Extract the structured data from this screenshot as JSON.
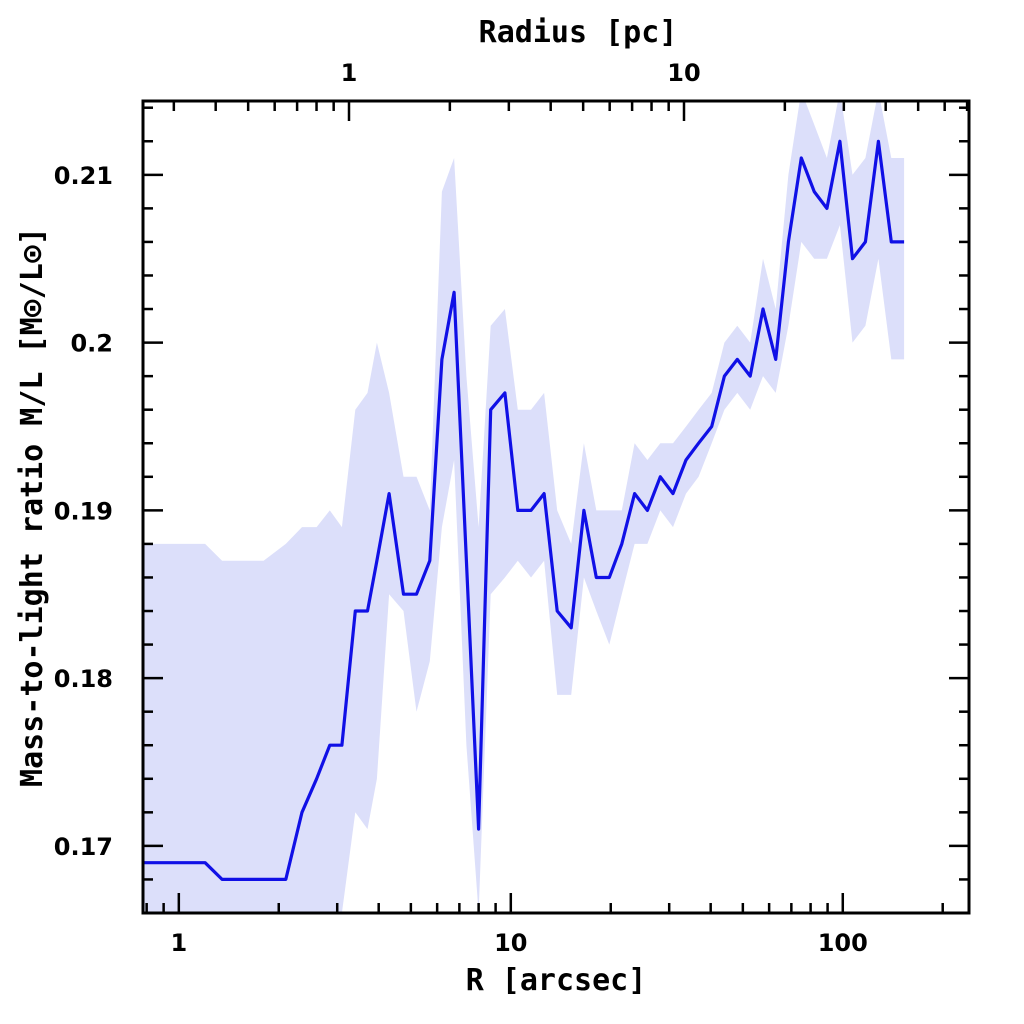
{
  "chart_data": {
    "type": "line",
    "title": "",
    "xlabel": "R [arcsec]",
    "ylabel": "Mass-to-light ratio M/L [M⊙/L⊙]",
    "top_xlabel": "Radius [pc]",
    "x_scale": "log",
    "xlim": [
      0.78,
      240
    ],
    "ylim": [
      0.166,
      0.2144
    ],
    "grid": false,
    "x_ticks": [
      {
        "value": 1,
        "label": "1"
      },
      {
        "value": 10,
        "label": "10"
      },
      {
        "value": 100,
        "label": "100"
      }
    ],
    "y_ticks": [
      {
        "value": 0.17,
        "label": "0.17"
      },
      {
        "value": 0.18,
        "label": "0.18"
      },
      {
        "value": 0.19,
        "label": "0.19"
      },
      {
        "value": 0.2,
        "label": "0.2"
      },
      {
        "value": 0.21,
        "label": "0.21"
      }
    ],
    "top_ticks": [
      {
        "value": 1,
        "label": "1"
      },
      {
        "value": 10,
        "label": "10"
      }
    ],
    "colors": {
      "line": "#1010e6",
      "band": "#dcdffa",
      "axes": "#000000"
    },
    "series": [
      {
        "x": [
          0.78,
          1.0,
          1.2,
          1.35,
          1.55,
          1.8,
          2.1,
          2.35,
          2.6,
          2.85,
          3.1,
          3.4,
          3.7,
          3.95,
          4.3,
          4.75,
          5.2,
          5.7,
          6.2,
          6.75,
          7.35,
          8.0,
          8.7,
          9.6,
          10.5,
          11.5,
          12.6,
          13.8,
          15.2,
          16.6,
          18.1,
          19.8,
          21.6,
          23.6,
          25.8,
          28.2,
          30.8,
          33.7,
          36.8,
          40.3,
          44.0,
          48.1,
          52.6,
          57.5,
          62.8,
          68.6,
          75.0,
          82.0,
          89.6,
          98.0,
          107.0,
          117.0,
          128.0,
          140.0,
          153.0
        ],
        "y": [
          0.169,
          0.169,
          0.169,
          0.168,
          0.168,
          0.168,
          0.168,
          0.172,
          0.174,
          0.176,
          0.176,
          0.184,
          0.184,
          0.187,
          0.191,
          0.185,
          0.185,
          0.187,
          0.199,
          0.203,
          0.187,
          0.171,
          0.196,
          0.197,
          0.19,
          0.19,
          0.191,
          0.184,
          0.183,
          0.19,
          0.186,
          0.186,
          0.188,
          0.191,
          0.19,
          0.192,
          0.191,
          0.193,
          0.194,
          0.195,
          0.198,
          0.199,
          0.198,
          0.202,
          0.199,
          0.206,
          0.211,
          0.209,
          0.208,
          0.212,
          0.205,
          0.206,
          0.212,
          0.206,
          0.206
        ],
        "y_upper": [
          0.188,
          0.188,
          0.188,
          0.187,
          0.187,
          0.187,
          0.188,
          0.189,
          0.189,
          0.19,
          0.189,
          0.196,
          0.197,
          0.2,
          0.197,
          0.192,
          0.192,
          0.19,
          0.209,
          0.211,
          0.198,
          0.189,
          0.201,
          0.202,
          0.196,
          0.196,
          0.197,
          0.19,
          0.188,
          0.194,
          0.19,
          0.19,
          0.19,
          0.194,
          0.193,
          0.194,
          0.194,
          0.195,
          0.196,
          0.197,
          0.2,
          0.201,
          0.2,
          0.205,
          0.202,
          0.21,
          0.215,
          0.213,
          0.211,
          0.215,
          0.21,
          0.211,
          0.215,
          0.211,
          0.211
        ],
        "y_lower": [
          0.166,
          0.166,
          0.166,
          0.166,
          0.166,
          0.166,
          0.166,
          0.166,
          0.166,
          0.166,
          0.166,
          0.172,
          0.171,
          0.174,
          0.185,
          0.184,
          0.178,
          0.181,
          0.189,
          0.193,
          0.176,
          0.166,
          0.185,
          0.186,
          0.187,
          0.186,
          0.187,
          0.179,
          0.179,
          0.186,
          0.184,
          0.182,
          0.185,
          0.188,
          0.188,
          0.19,
          0.189,
          0.191,
          0.192,
          0.194,
          0.196,
          0.197,
          0.196,
          0.198,
          0.197,
          0.201,
          0.206,
          0.205,
          0.205,
          0.207,
          0.2,
          0.201,
          0.205,
          0.199,
          0.199
        ]
      }
    ]
  }
}
